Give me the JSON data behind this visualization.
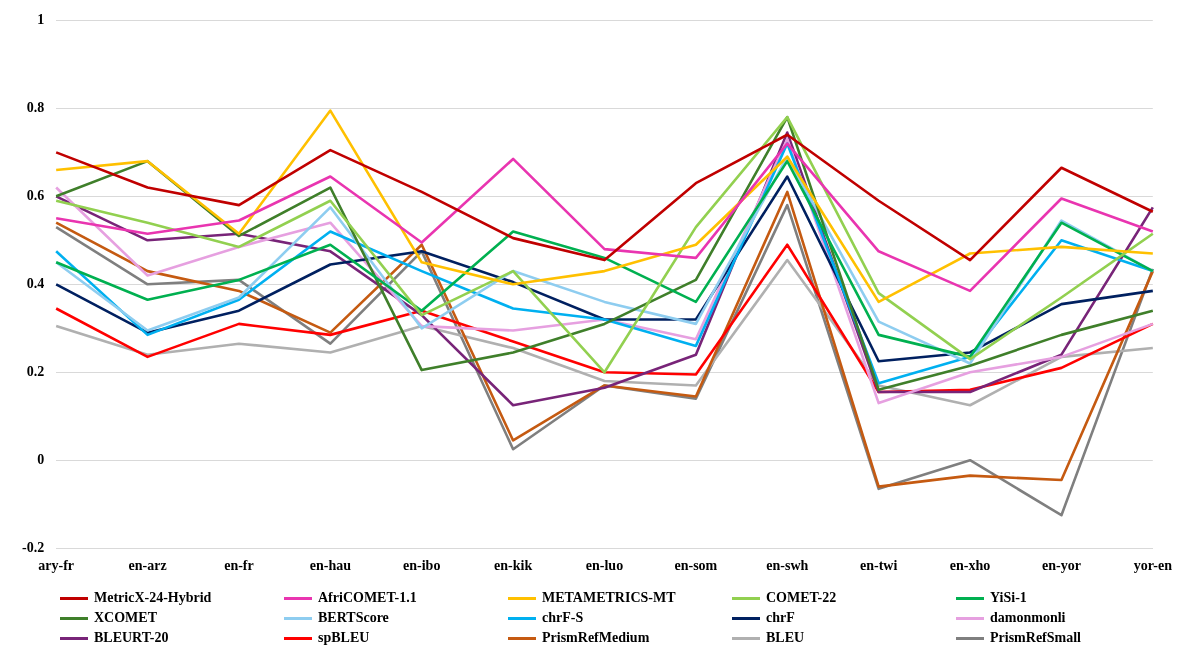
{
  "chart_data": {
    "type": "line",
    "categories": [
      "ary-fr",
      "en-arz",
      "en-fr",
      "en-hau",
      "en-ibo",
      "en-kik",
      "en-luo",
      "en-som",
      "en-swh",
      "en-twi",
      "en-xho",
      "en-yor",
      "yor-en"
    ],
    "ylim": [
      -0.2,
      1
    ],
    "yticks": [
      -0.2,
      0,
      0.2,
      0.4,
      0.6,
      0.8,
      1
    ],
    "grid": "y",
    "legend": "bottom",
    "marker": "none",
    "line_style": "solid",
    "series": [
      {
        "name": "MetricX-24-Hybrid",
        "color": "#c00000",
        "values": [
          0.7,
          0.62,
          0.58,
          0.705,
          0.61,
          0.505,
          0.455,
          0.63,
          0.74,
          0.59,
          0.455,
          0.665,
          0.565
        ]
      },
      {
        "name": "AfriCOMET-1.1",
        "color": "#e935b0",
        "values": [
          0.55,
          0.515,
          0.545,
          0.645,
          0.495,
          0.685,
          0.48,
          0.46,
          0.72,
          0.475,
          0.385,
          0.595,
          0.52
        ]
      },
      {
        "name": "METAMETRICS-MT",
        "color": "#ffc000",
        "values": [
          0.66,
          0.68,
          0.515,
          0.795,
          0.45,
          0.4,
          0.43,
          0.49,
          0.69,
          0.36,
          0.47,
          0.485,
          0.47
        ]
      },
      {
        "name": "COMET-22",
        "color": "#92d050",
        "values": [
          0.59,
          0.54,
          0.485,
          0.59,
          0.33,
          0.43,
          0.2,
          0.53,
          0.78,
          0.38,
          0.23,
          0.37,
          0.515
        ]
      },
      {
        "name": "YiSi-1",
        "color": "#00b050",
        "values": [
          0.45,
          0.365,
          0.41,
          0.49,
          0.34,
          0.52,
          0.46,
          0.36,
          0.68,
          0.285,
          0.235,
          0.54,
          0.43
        ]
      },
      {
        "name": "XCOMET",
        "color": "#3f7f2a",
        "values": [
          0.6,
          0.68,
          0.51,
          0.62,
          0.205,
          0.245,
          0.31,
          0.41,
          0.78,
          0.16,
          0.215,
          0.285,
          0.34
        ]
      },
      {
        "name": "BERTScore",
        "color": "#8ecdf0",
        "values": [
          0.45,
          0.295,
          0.37,
          0.575,
          0.3,
          0.43,
          0.36,
          0.31,
          0.69,
          0.315,
          0.22,
          0.545,
          0.43
        ]
      },
      {
        "name": "chrF-S",
        "color": "#00b0f0",
        "values": [
          0.475,
          0.285,
          0.365,
          0.52,
          0.43,
          0.345,
          0.32,
          0.26,
          0.72,
          0.175,
          0.235,
          0.5,
          0.43
        ]
      },
      {
        "name": "chrF",
        "color": "#002060",
        "values": [
          0.4,
          0.29,
          0.34,
          0.445,
          0.475,
          0.405,
          0.32,
          0.32,
          0.645,
          0.225,
          0.245,
          0.355,
          0.385
        ]
      },
      {
        "name": "damonmonli",
        "color": "#e6a0e0",
        "values": [
          0.62,
          0.42,
          0.485,
          0.54,
          0.305,
          0.295,
          0.32,
          0.275,
          0.73,
          0.13,
          0.2,
          0.235,
          0.31
        ]
      },
      {
        "name": "BLEURT-20",
        "color": "#782478",
        "values": [
          0.6,
          0.5,
          0.515,
          0.475,
          0.33,
          0.125,
          0.165,
          0.24,
          0.745,
          0.155,
          0.155,
          0.24,
          0.575
        ]
      },
      {
        "name": "spBLEU",
        "color": "#ff0000",
        "values": [
          0.345,
          0.235,
          0.31,
          0.285,
          0.34,
          0.27,
          0.2,
          0.195,
          0.49,
          0.155,
          0.16,
          0.21,
          0.31
        ]
      },
      {
        "name": "PrismRefMedium",
        "color": "#c55a11",
        "values": [
          0.54,
          0.43,
          0.385,
          0.29,
          0.49,
          0.045,
          0.17,
          0.145,
          0.61,
          -0.06,
          -0.035,
          -0.045,
          0.43
        ]
      },
      {
        "name": "BLEU",
        "color": "#b0b0b0",
        "values": [
          0.305,
          0.24,
          0.265,
          0.245,
          0.305,
          0.255,
          0.18,
          0.17,
          0.455,
          0.17,
          0.125,
          0.235,
          0.255
        ]
      },
      {
        "name": "PrismRefSmall",
        "color": "#7f7f7f",
        "values": [
          0.53,
          0.4,
          0.41,
          0.265,
          0.475,
          0.025,
          0.17,
          0.14,
          0.58,
          -0.065,
          0.0,
          -0.125,
          0.435
        ]
      }
    ]
  }
}
